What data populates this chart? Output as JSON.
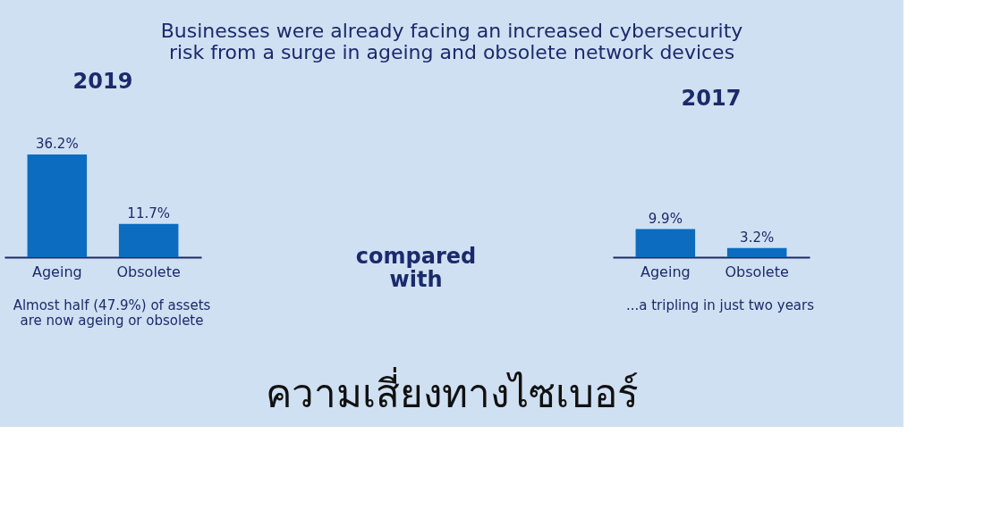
{
  "chart_data": [
    {
      "type": "bar",
      "title": "2019",
      "categories": [
        "Ageing",
        "Obsolete"
      ],
      "values": [
        36.2,
        11.7
      ],
      "color": "#0b6cc0",
      "value_labels": [
        "36.2%",
        "11.7%"
      ],
      "annotations": [
        "Businesses were already facing an increased cybersecurity risk from a surge in ageing and obsolete network devices",
        "Almost half (47.9%) of assets are now ageing or obsolete"
      ]
    },
    {
      "type": "other",
      "annotations": [
        "compared with"
      ]
    },
    {
      "type": "bar",
      "title": "2017",
      "categories": [
        "Ageing",
        "Obsolete"
      ],
      "values": [
        9.9,
        3.2
      ],
      "color": "#0b6cc0",
      "value_labels": [
        "9.9%",
        "3.2%"
      ],
      "annotations": [
        "...a tripling in just two years",
        "ความเสี่ยงทางไซเบอร์"
      ]
    }
  ]
}
